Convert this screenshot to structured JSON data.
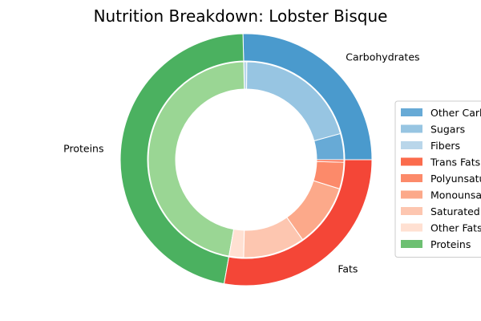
{
  "chart_data": {
    "type": "pie",
    "title": "Nutrition Breakdown:  Lobster Bisque",
    "outer_ring": {
      "categories": [
        "Carbohydrates",
        "Proteins",
        "Fats"
      ],
      "values": [
        25.4,
        46.8,
        27.8
      ],
      "colors": [
        "#4a9acd",
        "#4bb160",
        "#f44637"
      ]
    },
    "inner_ring": {
      "categories": [
        "Other Carbohydrates",
        "Sugars",
        "Fibers",
        "Proteins",
        "Other Fats",
        "Saturated Fats",
        "Monounsaturated Fats",
        "Polyunsaturated Fats",
        "Trans Fats"
      ],
      "values": [
        4.3,
        20.6,
        0.5,
        46.8,
        2.4,
        10.2,
        10.4,
        4.4,
        0.4
      ],
      "colors": [
        "#67aad6",
        "#97c5e2",
        "#b9d6ea",
        "#9ad694",
        "#ffe0d2",
        "#fdc6b0",
        "#fca98a",
        "#fc8a6a",
        "#fb6b4c"
      ]
    },
    "legend": {
      "position": "right",
      "entries": [
        {
          "label": "Other Carbohydrates",
          "color": "#67aad6"
        },
        {
          "label": "Sugars",
          "color": "#97c5e2"
        },
        {
          "label": "Fibers",
          "color": "#b9d6ea"
        },
        {
          "label": "Trans Fats",
          "color": "#fb6b4c"
        },
        {
          "label": "Polyunsaturated Fats",
          "color": "#fc8a6a"
        },
        {
          "label": "Monounsaturated Fats",
          "color": "#fca98a"
        },
        {
          "label": "Saturated Fats",
          "color": "#fdc6b0"
        },
        {
          "label": "Other Fats",
          "color": "#ffe0d2"
        },
        {
          "label": "Proteins",
          "color": "#6dc072"
        }
      ]
    }
  }
}
